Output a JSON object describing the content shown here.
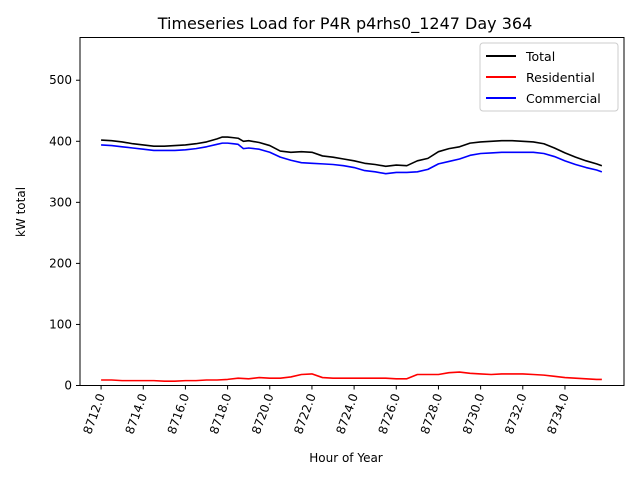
{
  "chart_data": {
    "type": "line",
    "title": "Timeseries Load for P4R p4rhs0_1247  Day 364",
    "xlabel": "Hour of Year",
    "ylabel": "kW total",
    "xlim": [
      8711.0,
      8736.8
    ],
    "ylim": [
      0,
      570
    ],
    "x_ticks": [
      8712,
      8714,
      8716,
      8718,
      8720,
      8722,
      8724,
      8726,
      8728,
      8730,
      8732,
      8734
    ],
    "x_tick_labels": [
      "8712.0",
      "8714.0",
      "8716.0",
      "8718.0",
      "8720.0",
      "8722.0",
      "8724.0",
      "8726.0",
      "8728.0",
      "8730.0",
      "8732.0",
      "8734.0"
    ],
    "y_ticks": [
      0,
      100,
      200,
      300,
      400,
      500
    ],
    "y_tick_labels": [
      "0",
      "100",
      "200",
      "300",
      "400",
      "500"
    ],
    "legend_position": "top-right",
    "series": [
      {
        "name": "Total",
        "color": "#000000",
        "x": [
          8712.0,
          8712.5,
          8713.0,
          8713.5,
          8714.0,
          8714.5,
          8715.0,
          8715.5,
          8716.0,
          8716.5,
          8717.0,
          8717.5,
          8717.75,
          8718.0,
          8718.25,
          8718.5,
          8718.75,
          8719.0,
          8719.5,
          8720.0,
          8720.5,
          8721.0,
          8721.5,
          8722.0,
          8722.5,
          8723.0,
          8723.5,
          8724.0,
          8724.5,
          8725.0,
          8725.5,
          8726.0,
          8726.5,
          8727.0,
          8727.5,
          8728.0,
          8728.5,
          8729.0,
          8729.5,
          8730.0,
          8730.5,
          8731.0,
          8731.5,
          8732.0,
          8732.5,
          8733.0,
          8733.5,
          8734.0,
          8734.5,
          8735.0,
          8735.5,
          8735.75
        ],
        "values": [
          402,
          401,
          399,
          396,
          394,
          392,
          392,
          393,
          394,
          396,
          399,
          404,
          407,
          407,
          406,
          405,
          400,
          401,
          398,
          393,
          384,
          382,
          383,
          382,
          376,
          374,
          371,
          368,
          364,
          362,
          359,
          361,
          360,
          368,
          372,
          383,
          388,
          391,
          397,
          399,
          400,
          401,
          401,
          400,
          399,
          396,
          389,
          381,
          374,
          368,
          363,
          360
        ]
      },
      {
        "name": "Residential",
        "color": "#ff0000",
        "x": [
          8712.0,
          8712.5,
          8713.0,
          8713.5,
          8714.0,
          8714.5,
          8715.0,
          8715.5,
          8716.0,
          8716.5,
          8717.0,
          8717.5,
          8718.0,
          8718.5,
          8719.0,
          8719.5,
          8720.0,
          8720.5,
          8721.0,
          8721.5,
          8722.0,
          8722.5,
          8723.0,
          8723.5,
          8724.0,
          8724.5,
          8725.0,
          8725.5,
          8726.0,
          8726.5,
          8727.0,
          8727.5,
          8728.0,
          8728.5,
          8729.0,
          8729.5,
          8730.0,
          8730.5,
          8731.0,
          8731.5,
          8732.0,
          8732.5,
          8733.0,
          8733.5,
          8734.0,
          8734.5,
          8735.0,
          8735.5,
          8735.75
        ],
        "values": [
          9,
          9,
          8,
          8,
          8,
          8,
          7,
          7,
          8,
          8,
          9,
          9,
          10,
          12,
          11,
          13,
          12,
          12,
          14,
          18,
          19,
          13,
          12,
          12,
          12,
          12,
          12,
          12,
          11,
          11,
          18,
          18,
          18,
          21,
          22,
          20,
          19,
          18,
          19,
          19,
          19,
          18,
          17,
          15,
          13,
          12,
          11,
          10,
          10
        ]
      },
      {
        "name": "Commercial",
        "color": "#0000ff",
        "x": [
          8712.0,
          8712.5,
          8713.0,
          8713.5,
          8714.0,
          8714.5,
          8715.0,
          8715.5,
          8716.0,
          8716.5,
          8717.0,
          8717.5,
          8717.75,
          8718.0,
          8718.25,
          8718.5,
          8718.75,
          8719.0,
          8719.5,
          8720.0,
          8720.5,
          8721.0,
          8721.5,
          8722.0,
          8722.5,
          8723.0,
          8723.5,
          8724.0,
          8724.5,
          8725.0,
          8725.5,
          8726.0,
          8726.5,
          8727.0,
          8727.5,
          8728.0,
          8728.5,
          8729.0,
          8729.5,
          8730.0,
          8730.5,
          8731.0,
          8731.5,
          8732.0,
          8732.5,
          8733.0,
          8733.5,
          8734.0,
          8734.5,
          8735.0,
          8735.5,
          8735.75
        ],
        "values": [
          394,
          393,
          391,
          389,
          387,
          385,
          385,
          385,
          386,
          388,
          391,
          395,
          397,
          397,
          396,
          395,
          388,
          389,
          387,
          382,
          374,
          369,
          365,
          364,
          363,
          362,
          360,
          357,
          352,
          350,
          347,
          349,
          349,
          350,
          354,
          363,
          367,
          371,
          377,
          380,
          381,
          382,
          382,
          382,
          382,
          380,
          375,
          368,
          362,
          357,
          353,
          350
        ]
      }
    ]
  }
}
